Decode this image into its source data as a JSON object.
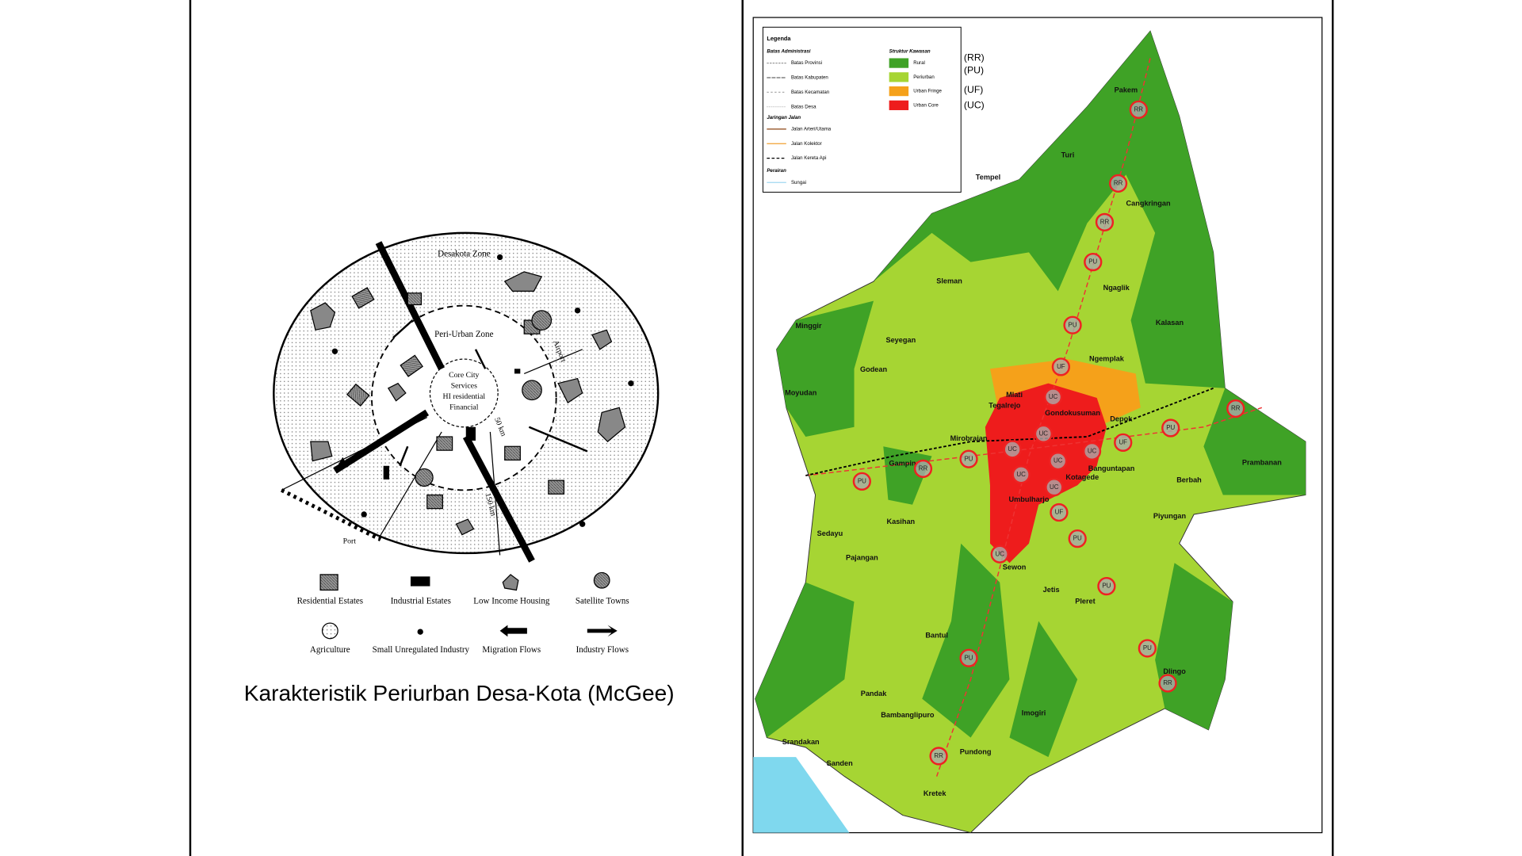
{
  "caption": "Karakteristik Periurban Desa-Kota (McGee)",
  "diagram": {
    "zones": [
      "Desakota Zone",
      "Peri-Urban Zone",
      "Airport",
      "Port",
      "50 km",
      "150 km"
    ],
    "core": [
      "Core City",
      "Services",
      "HI residential",
      "Financial"
    ],
    "legend": [
      "Residential Estates",
      "Industrial Estates",
      "Low Income Housing",
      "Satellite Towns",
      "Agriculture",
      "Small Unregulated Industry",
      "Migration Flows",
      "Industry Flows"
    ]
  },
  "map": {
    "legend": {
      "title": "Legenda",
      "sections": [
        {
          "title": "Batas Administrasi",
          "items": [
            "Batas Provinsi",
            "Batas Kabupaten",
            "Batas Kecamatan",
            "Batas Desa"
          ]
        },
        {
          "title": "Jaringan Jalan",
          "items": [
            "Jalan Arteri/Utama",
            "Jalan Kolektor",
            "Jalan Kereta Api"
          ]
        },
        {
          "title": "Perairan",
          "items": [
            "Sungai"
          ]
        },
        {
          "title": "Struktur Kawasan",
          "items": [
            "Rural",
            "Periurban",
            "Urban Fringe",
            "Urban Core"
          ]
        }
      ],
      "codes": [
        "(RR)",
        "(PU)",
        "(UF)",
        "(UC)"
      ]
    },
    "districts": [
      "Pakem",
      "Turi",
      "Tempel",
      "Cangkringan",
      "Sleman",
      "Ngaglik",
      "Minggir",
      "Seyegan",
      "Kalasan",
      "Ngemplak",
      "Godean",
      "Moyudan",
      "Mlati",
      "Tegalrejo",
      "Gondokusuman",
      "Depok",
      "Mirobrajan",
      "Gamping",
      "Banguntapan",
      "Kotagede",
      "Umbulharjo",
      "Prambanan",
      "Berbah",
      "Piyungan",
      "Kasihan",
      "Sedayu",
      "Pajangan",
      "Sewon",
      "Jetis",
      "Pleret",
      "Bantul",
      "Dlingo",
      "Pandak",
      "Imogiri",
      "Bambanglipuro",
      "Srandakan",
      "Pundong",
      "Sanden",
      "Kretek"
    ],
    "markers": [
      "RR",
      "RR",
      "RR",
      "PU",
      "PU",
      "UF",
      "UC",
      "RR",
      "PU",
      "UF",
      "UC",
      "UC",
      "UC",
      "UC",
      "PU",
      "RR",
      "PU",
      "UC",
      "UC",
      "UF",
      "PU",
      "UC",
      "PU",
      "PU",
      "PU",
      "RR",
      "RR"
    ]
  }
}
